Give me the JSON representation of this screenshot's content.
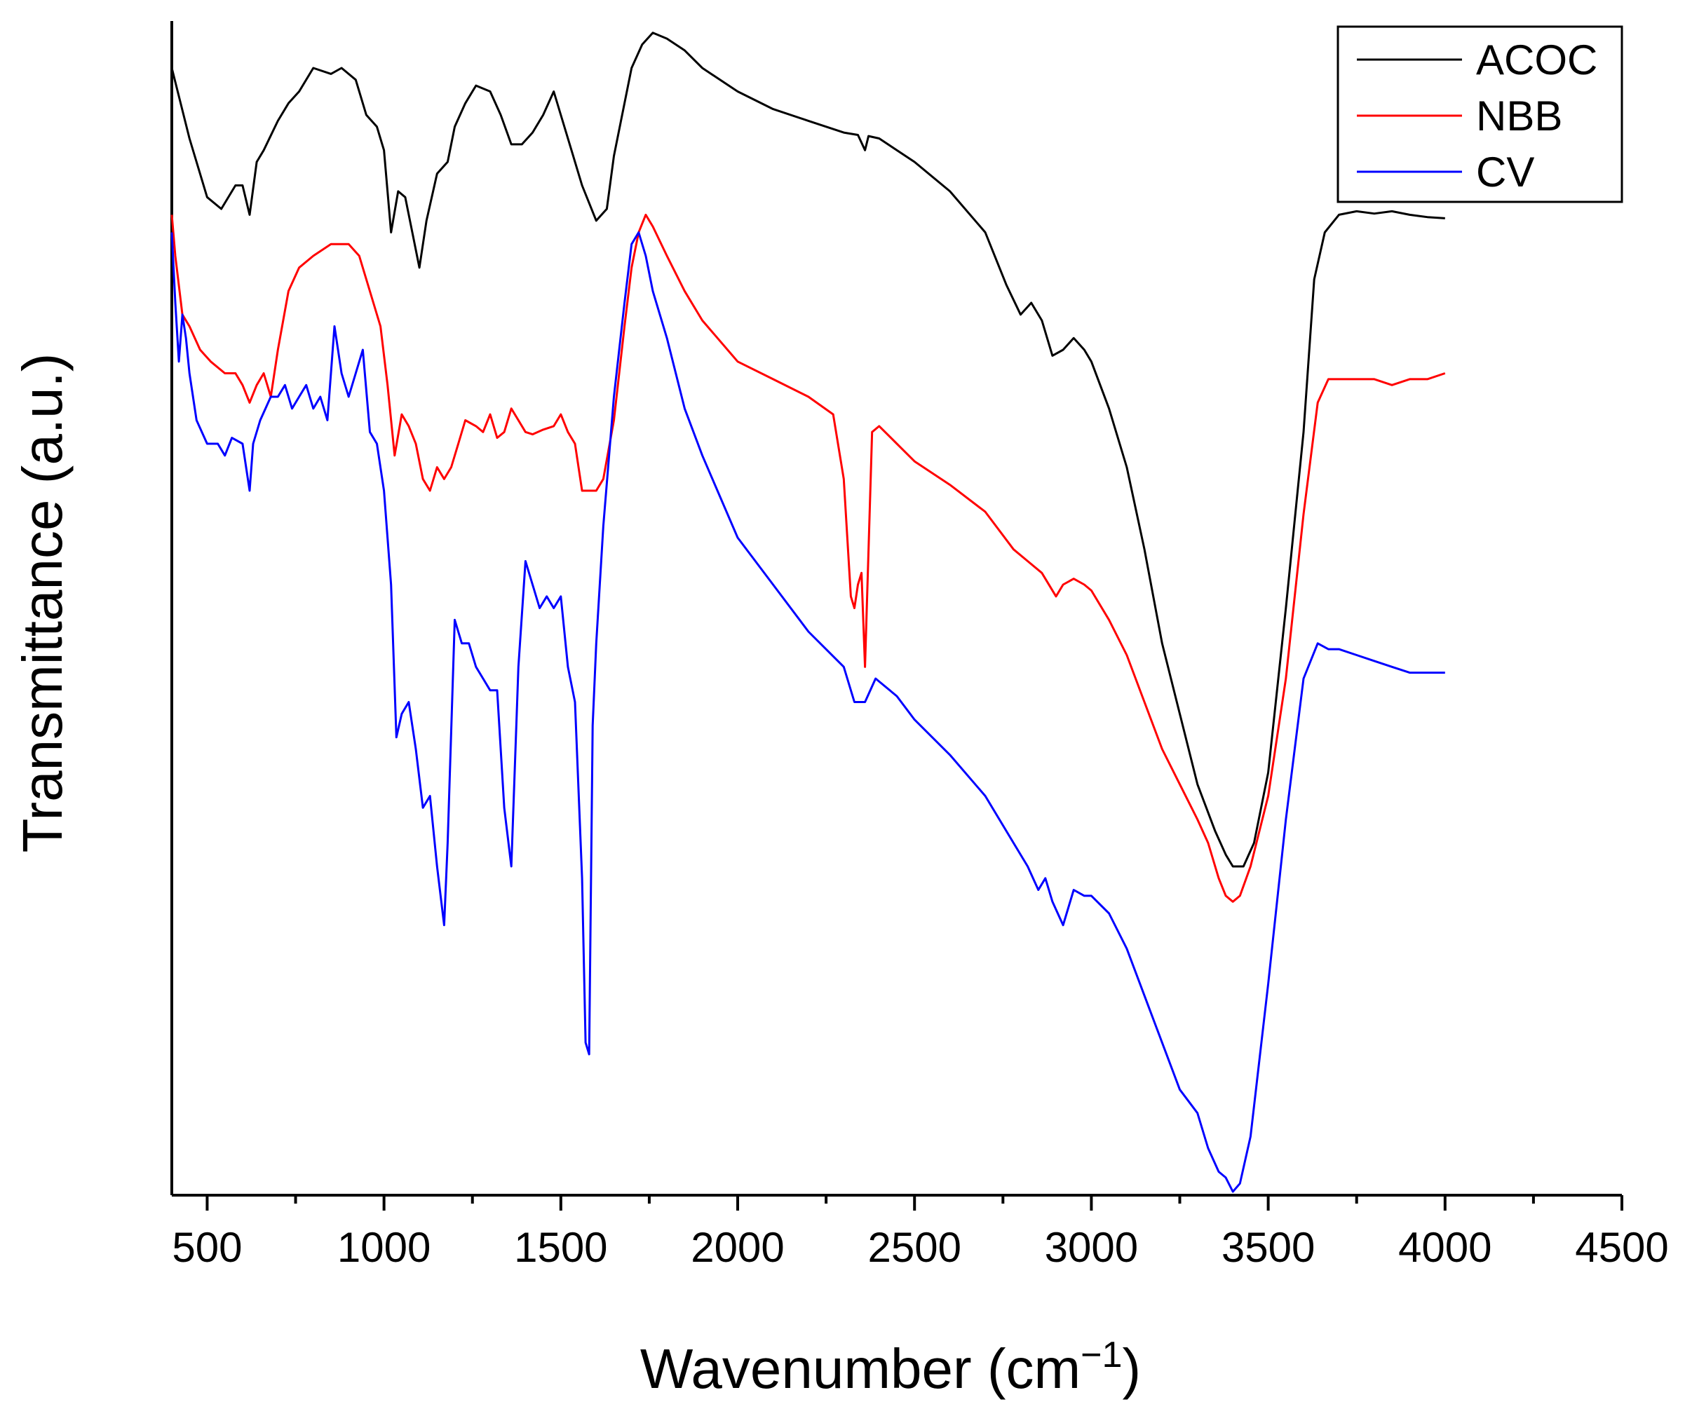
{
  "chart_data": {
    "type": "line",
    "title": "",
    "xlabel": "Wavenumber (cm",
    "xlabel_sup": "−1",
    "xlabel_close": ")",
    "ylabel": "Transmittance (a.u.)",
    "xlim": [
      400,
      4500
    ],
    "ylim": [
      0,
      100
    ],
    "xticks": [
      500,
      1000,
      1500,
      2000,
      2500,
      3000,
      3500,
      4000,
      4500
    ],
    "xtick_labels": [
      "500",
      "1000",
      "1500",
      "2000",
      "2500",
      "3000",
      "3500",
      "4000",
      "4500"
    ],
    "yticks_shown": false,
    "grid": false,
    "legend_position": "top-right",
    "series": [
      {
        "name": "ACOC",
        "color": "#000000",
        "x": [
          400,
          450,
          500,
          540,
          580,
          600,
          620,
          640,
          660,
          700,
          730,
          760,
          800,
          850,
          880,
          920,
          950,
          980,
          1000,
          1020,
          1040,
          1060,
          1080,
          1100,
          1120,
          1150,
          1180,
          1200,
          1230,
          1260,
          1300,
          1330,
          1360,
          1390,
          1420,
          1450,
          1480,
          1500,
          1530,
          1560,
          1600,
          1630,
          1650,
          1680,
          1700,
          1730,
          1760,
          1800,
          1850,
          1900,
          1950,
          2000,
          2100,
          2200,
          2300,
          2340,
          2360,
          2370,
          2400,
          2500,
          2600,
          2700,
          2760,
          2800,
          2830,
          2860,
          2890,
          2920,
          2950,
          2980,
          3000,
          3050,
          3100,
          3150,
          3200,
          3250,
          3300,
          3350,
          3380,
          3400,
          3430,
          3460,
          3500,
          3550,
          3600,
          3630,
          3660,
          3700,
          3750,
          3800,
          3850,
          3900,
          3950,
          4000
        ],
        "values": [
          96,
          90,
          85,
          84,
          86,
          86,
          83.5,
          88,
          89,
          91.5,
          93,
          94,
          96,
          95.5,
          96,
          95,
          92,
          91,
          89,
          82,
          85.5,
          85,
          82,
          79,
          83,
          87,
          88,
          91,
          93,
          94.5,
          94,
          92,
          89.5,
          89.5,
          90.5,
          92,
          94,
          92,
          89,
          86,
          83,
          84,
          88.5,
          93,
          96,
          98,
          99,
          98.5,
          97.5,
          96,
          95,
          94,
          92.5,
          91.5,
          90.5,
          90.3,
          89,
          90.2,
          90,
          88,
          85.5,
          82,
          77.5,
          75,
          76,
          74.5,
          71.5,
          72,
          73,
          72,
          71,
          67,
          62,
          55,
          47,
          41,
          35,
          31,
          29,
          28,
          28,
          30,
          36,
          50,
          65,
          78,
          82,
          83.5,
          83.8,
          83.6,
          83.8,
          83.5,
          83.3,
          83.2
        ]
      },
      {
        "name": "NBB",
        "color": "#ff0000",
        "x": [
          400,
          410,
          430,
          450,
          480,
          510,
          550,
          580,
          600,
          620,
          640,
          660,
          680,
          700,
          730,
          760,
          800,
          850,
          900,
          930,
          950,
          970,
          990,
          1010,
          1030,
          1050,
          1070,
          1090,
          1110,
          1130,
          1150,
          1170,
          1190,
          1210,
          1230,
          1260,
          1280,
          1300,
          1320,
          1340,
          1360,
          1380,
          1400,
          1420,
          1450,
          1480,
          1500,
          1520,
          1540,
          1560,
          1580,
          1600,
          1620,
          1650,
          1680,
          1700,
          1720,
          1740,
          1760,
          1800,
          1850,
          1900,
          2000,
          2100,
          2200,
          2270,
          2300,
          2320,
          2330,
          2340,
          2350,
          2360,
          2380,
          2400,
          2450,
          2500,
          2600,
          2700,
          2780,
          2820,
          2860,
          2900,
          2920,
          2950,
          2980,
          3000,
          3050,
          3100,
          3150,
          3200,
          3250,
          3300,
          3330,
          3360,
          3380,
          3400,
          3420,
          3450,
          3500,
          3550,
          3600,
          3640,
          3670,
          3700,
          3750,
          3800,
          3850,
          3900,
          3950,
          4000
        ],
        "values": [
          83.5,
          80,
          75,
          74,
          72,
          71,
          70,
          70,
          69,
          67.5,
          69,
          70,
          68,
          72,
          77,
          79,
          80,
          81,
          81,
          80,
          78,
          76,
          74,
          69,
          63,
          66.5,
          65.5,
          64,
          61,
          60,
          62,
          61,
          62,
          64,
          66,
          65.5,
          65,
          66.5,
          64.5,
          65,
          67,
          66,
          65,
          64.8,
          65.2,
          65.5,
          66.5,
          65,
          64,
          60,
          60,
          60,
          61,
          66,
          74,
          79,
          82,
          83.5,
          82.5,
          80,
          77,
          74.5,
          71,
          69.5,
          68,
          66.5,
          61,
          51,
          50,
          52,
          53,
          45,
          65,
          65.5,
          64,
          62.5,
          60.5,
          58.2,
          55,
          54,
          53,
          51,
          52,
          52.5,
          52,
          51.5,
          49,
          46,
          42,
          38,
          35,
          32,
          30,
          27,
          25.5,
          25,
          25.5,
          28,
          34,
          44,
          58,
          67.5,
          69.5,
          69.5,
          69.5,
          69.5,
          69,
          69.5,
          69.5,
          70
        ]
      },
      {
        "name": "CV",
        "color": "#0000ff",
        "x": [
          400,
          410,
          420,
          430,
          440,
          450,
          470,
          500,
          530,
          550,
          570,
          600,
          620,
          630,
          650,
          680,
          700,
          720,
          740,
          760,
          780,
          800,
          820,
          840,
          860,
          880,
          900,
          920,
          940,
          960,
          980,
          1000,
          1020,
          1035,
          1050,
          1070,
          1090,
          1110,
          1130,
          1150,
          1170,
          1180,
          1200,
          1220,
          1240,
          1260,
          1280,
          1300,
          1320,
          1340,
          1360,
          1380,
          1400,
          1420,
          1440,
          1460,
          1480,
          1500,
          1520,
          1540,
          1560,
          1570,
          1580,
          1590,
          1600,
          1620,
          1650,
          1680,
          1700,
          1720,
          1740,
          1760,
          1800,
          1850,
          1900,
          2000,
          2100,
          2200,
          2300,
          2330,
          2360,
          2390,
          2450,
          2500,
          2600,
          2700,
          2780,
          2820,
          2850,
          2870,
          2890,
          2920,
          2950,
          2980,
          3000,
          3050,
          3100,
          3150,
          3200,
          3250,
          3300,
          3330,
          3360,
          3380,
          3400,
          3420,
          3450,
          3500,
          3550,
          3600,
          3640,
          3670,
          3700,
          3750,
          3800,
          3850,
          3900,
          3950,
          4000
        ],
        "values": [
          82,
          76,
          71,
          75,
          73,
          70,
          66,
          64,
          64,
          63,
          64.5,
          64,
          60,
          64,
          66,
          68,
          68,
          69,
          67,
          68,
          69,
          67,
          68,
          66,
          74,
          70,
          68,
          70,
          72,
          65,
          64,
          60,
          52,
          39,
          41,
          42,
          38,
          33,
          34,
          28,
          23,
          30,
          49,
          47,
          47,
          45,
          44,
          43,
          43,
          33,
          28,
          45,
          54,
          52,
          50,
          51,
          50,
          51,
          45,
          42,
          27,
          13,
          12,
          40,
          47,
          57,
          68,
          76,
          81,
          82,
          80,
          77,
          73,
          67,
          63,
          56,
          52,
          48,
          45,
          42,
          42,
          44,
          42.5,
          40.5,
          37.5,
          34,
          30,
          28,
          26,
          27,
          25,
          23,
          26,
          25.5,
          25.5,
          24,
          21,
          17,
          13,
          9,
          7,
          4,
          2,
          1.5,
          0.3,
          1,
          5,
          18,
          32,
          44,
          47,
          46.5,
          46.5,
          46,
          45.5,
          45,
          44.5,
          44.5,
          44.5
        ]
      }
    ]
  }
}
